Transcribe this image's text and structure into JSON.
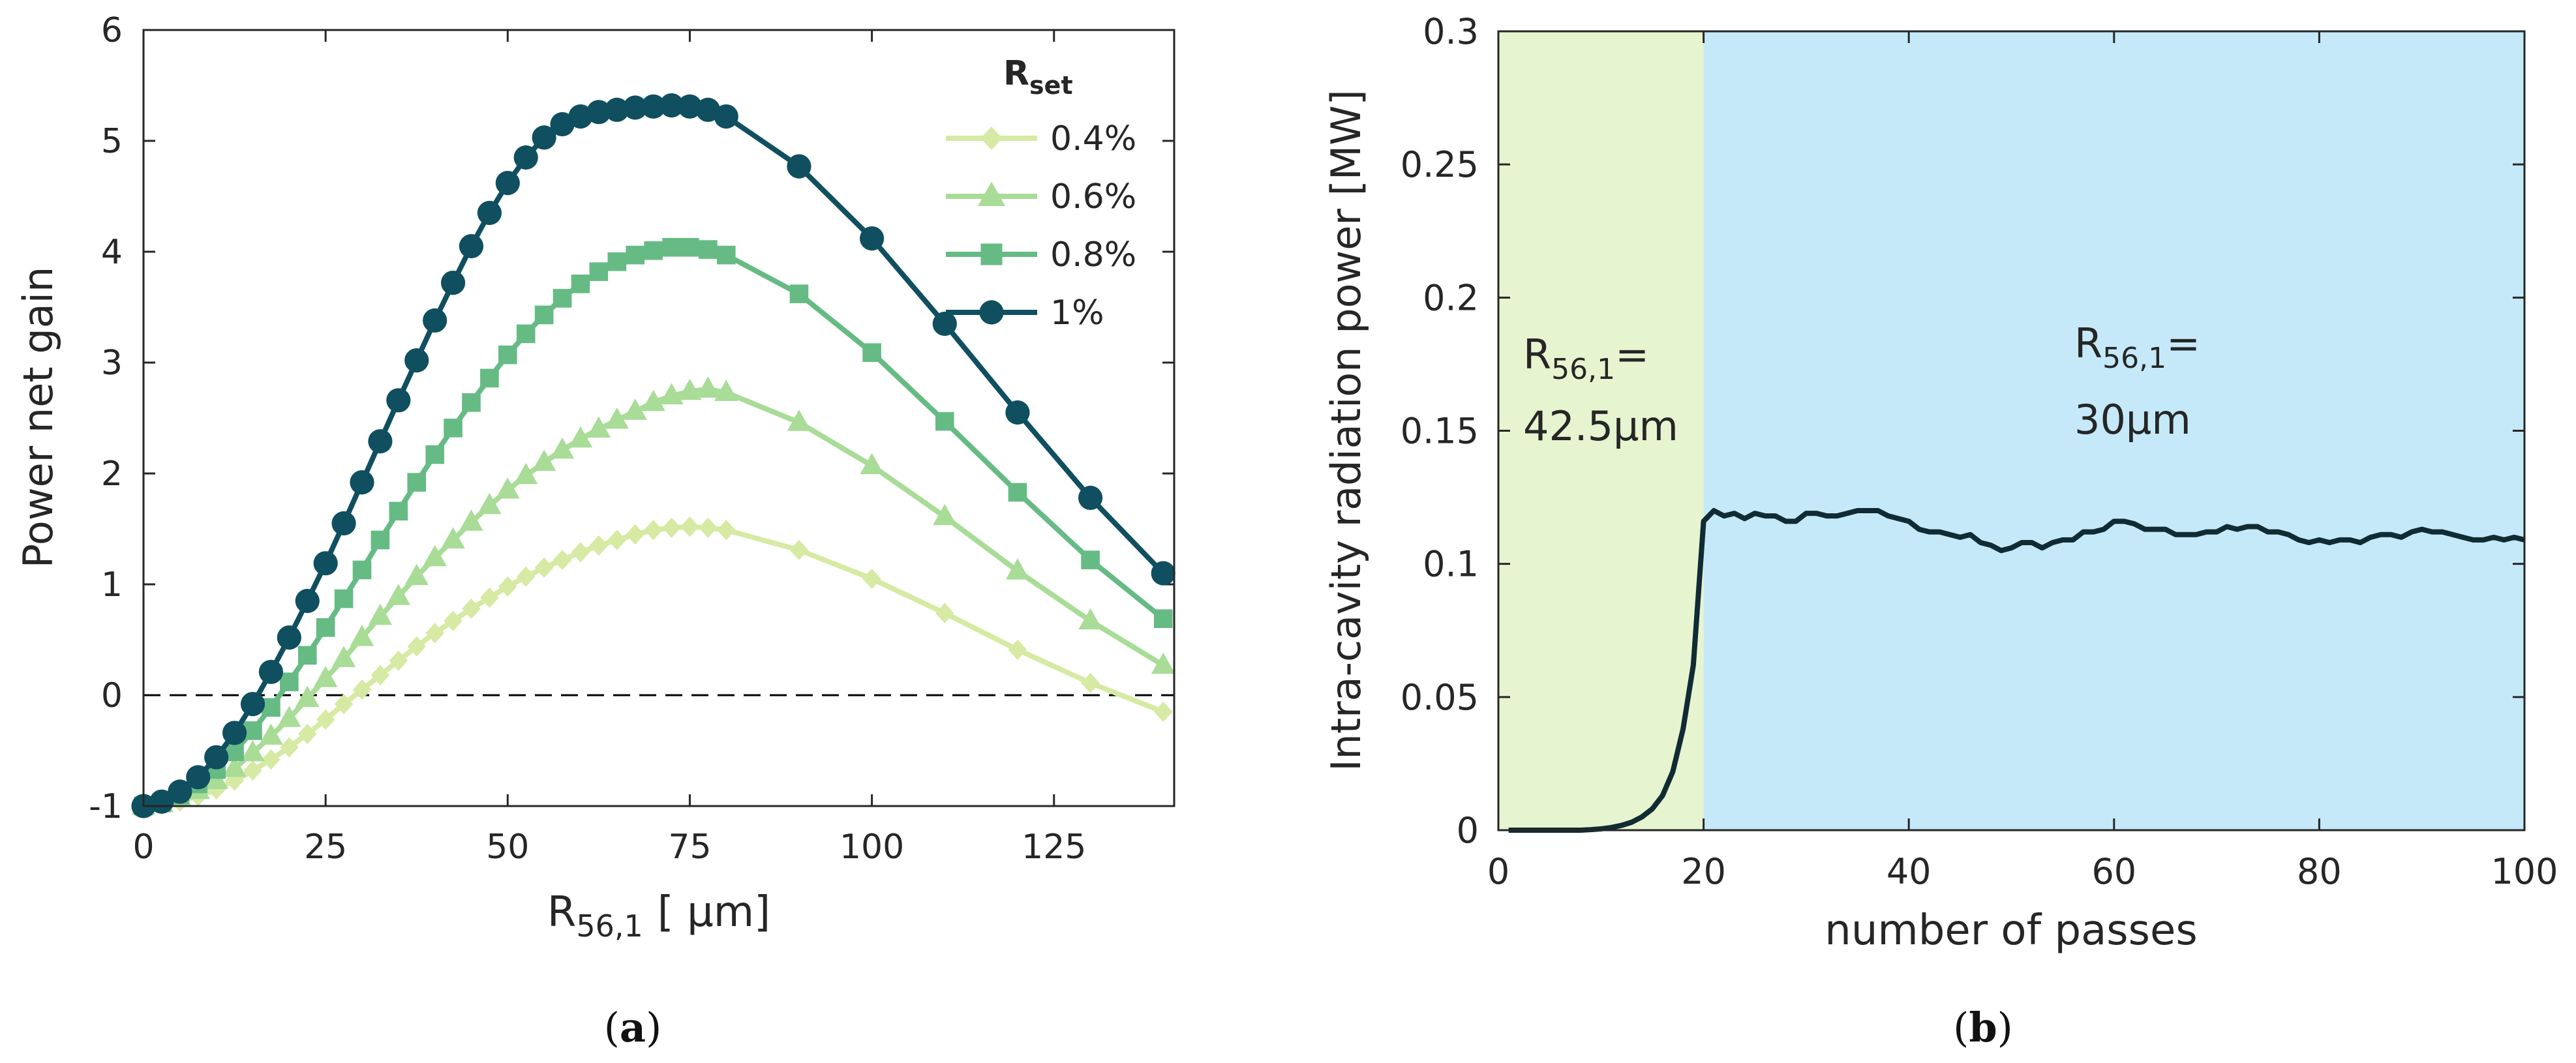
{
  "chart_data": [
    {
      "panel": "a",
      "type": "line",
      "caption": {
        "open": "(",
        "letter": "a",
        "close": ")"
      },
      "ylabel": "Power net gain",
      "xlabel": {
        "main": "R",
        "sub": "56,1",
        "unit": "[ μm]"
      },
      "xlim": [
        0,
        140
      ],
      "ylim": [
        -1,
        6
      ],
      "xticks": [
        0,
        25,
        50,
        75,
        100,
        125
      ],
      "yticks": [
        -1,
        0,
        1,
        2,
        3,
        4,
        5,
        6
      ],
      "reference_line": {
        "y": 0,
        "style": "dashed"
      },
      "legend": {
        "title_main": "R",
        "title_sub": "set",
        "position": "top-right"
      },
      "series": [
        {
          "name": "0.4%",
          "color": "#d6eaa3",
          "marker": "diamond",
          "x": [
            0,
            2.5,
            5,
            7.5,
            10,
            12.5,
            15,
            17.5,
            20,
            22.5,
            25,
            27.5,
            30,
            32.5,
            35,
            37.5,
            40,
            42.5,
            45,
            47.5,
            50,
            52.5,
            55,
            57.5,
            60,
            62.5,
            65,
            67.5,
            70,
            72.5,
            75,
            77.5,
            80,
            90,
            100,
            110,
            120,
            130,
            140
          ],
          "y": [
            -1.0,
            -0.99,
            -0.96,
            -0.91,
            -0.85,
            -0.77,
            -0.68,
            -0.58,
            -0.47,
            -0.35,
            -0.22,
            -0.08,
            0.05,
            0.18,
            0.31,
            0.44,
            0.56,
            0.67,
            0.78,
            0.88,
            0.98,
            1.07,
            1.15,
            1.22,
            1.29,
            1.35,
            1.4,
            1.45,
            1.49,
            1.51,
            1.52,
            1.51,
            1.49,
            1.31,
            1.05,
            0.74,
            0.41,
            0.11,
            -0.15
          ]
        },
        {
          "name": "0.6%",
          "color": "#a8dc97",
          "marker": "triangle",
          "x": [
            0,
            2.5,
            5,
            7.5,
            10,
            12.5,
            15,
            17.5,
            20,
            22.5,
            25,
            27.5,
            30,
            32.5,
            35,
            37.5,
            40,
            42.5,
            45,
            47.5,
            50,
            52.5,
            55,
            57.5,
            60,
            62.5,
            65,
            67.5,
            70,
            72.5,
            75,
            77.5,
            80,
            90,
            100,
            110,
            120,
            130,
            140
          ],
          "y": [
            -1.0,
            -0.98,
            -0.93,
            -0.86,
            -0.77,
            -0.66,
            -0.52,
            -0.37,
            -0.21,
            -0.03,
            0.15,
            0.33,
            0.52,
            0.71,
            0.89,
            1.07,
            1.24,
            1.4,
            1.56,
            1.71,
            1.85,
            1.98,
            2.1,
            2.21,
            2.31,
            2.4,
            2.48,
            2.56,
            2.64,
            2.7,
            2.74,
            2.76,
            2.73,
            2.46,
            2.07,
            1.61,
            1.12,
            0.67,
            0.27
          ]
        },
        {
          "name": "0.8%",
          "color": "#66bb84",
          "marker": "square",
          "x": [
            0,
            2.5,
            5,
            7.5,
            10,
            12.5,
            15,
            17.5,
            20,
            22.5,
            25,
            27.5,
            30,
            32.5,
            35,
            37.5,
            40,
            42.5,
            45,
            47.5,
            50,
            52.5,
            55,
            57.5,
            60,
            62.5,
            65,
            67.5,
            70,
            72.5,
            75,
            77.5,
            80,
            90,
            100,
            110,
            120,
            130,
            140
          ],
          "y": [
            -1.0,
            -0.97,
            -0.9,
            -0.8,
            -0.67,
            -0.51,
            -0.32,
            -0.11,
            0.12,
            0.36,
            0.61,
            0.87,
            1.13,
            1.4,
            1.66,
            1.92,
            2.17,
            2.41,
            2.64,
            2.86,
            3.07,
            3.26,
            3.43,
            3.58,
            3.71,
            3.82,
            3.91,
            3.97,
            4.01,
            4.04,
            4.04,
            4.02,
            3.97,
            3.62,
            3.09,
            2.47,
            1.83,
            1.22,
            0.69
          ]
        },
        {
          "name": "1%",
          "color": "#0f4f5f",
          "marker": "circle",
          "x": [
            0,
            2.5,
            5,
            7.5,
            10,
            12.5,
            15,
            17.5,
            20,
            22.5,
            25,
            27.5,
            30,
            32.5,
            35,
            37.5,
            40,
            42.5,
            45,
            47.5,
            50,
            52.5,
            55,
            57.5,
            60,
            62.5,
            65,
            67.5,
            70,
            72.5,
            75,
            77.5,
            80,
            90,
            100,
            110,
            120,
            130,
            140
          ],
          "y": [
            -1.0,
            -0.96,
            -0.87,
            -0.74,
            -0.56,
            -0.34,
            -0.08,
            0.21,
            0.52,
            0.85,
            1.19,
            1.55,
            1.92,
            2.29,
            2.66,
            3.02,
            3.38,
            3.72,
            4.05,
            4.35,
            4.62,
            4.85,
            5.03,
            5.15,
            5.22,
            5.26,
            5.28,
            5.3,
            5.31,
            5.32,
            5.31,
            5.28,
            5.22,
            4.77,
            4.12,
            3.35,
            2.55,
            1.78,
            1.1
          ]
        }
      ]
    },
    {
      "panel": "b",
      "type": "line",
      "caption": {
        "open": "(",
        "letter": "b",
        "close": ")"
      },
      "ylabel": "Intra-cavity radiation power [MW]",
      "xlabel": "number of passes",
      "xlim": [
        0,
        100
      ],
      "ylim": [
        0,
        0.3
      ],
      "xticks": [
        0,
        20,
        40,
        60,
        80,
        100
      ],
      "yticks": [
        "0",
        "0.05",
        "0.1",
        "0.15",
        "0.2",
        "0.25",
        "0.3"
      ],
      "regions": [
        {
          "from": 0,
          "to": 20,
          "color": "#e6f4cf",
          "label_main": "R",
          "label_sub": "56,1",
          "label_eq": "=",
          "label_value": "42.5μm"
        },
        {
          "from": 20,
          "to": 100,
          "color": "#c5e9f8",
          "label_main": "R",
          "label_sub": "56,1",
          "label_eq": "=",
          "label_value": "30μm"
        }
      ],
      "series": [
        {
          "name": "power",
          "color": "#102b33",
          "x": [
            1,
            2,
            3,
            4,
            5,
            6,
            7,
            8,
            9,
            10,
            11,
            12,
            13,
            14,
            15,
            16,
            17,
            18,
            19,
            20,
            21,
            22,
            23,
            24,
            25,
            26,
            27,
            28,
            29,
            30,
            31,
            32,
            33,
            34,
            35,
            36,
            37,
            38,
            39,
            40,
            41,
            42,
            43,
            44,
            45,
            46,
            47,
            48,
            49,
            50,
            51,
            52,
            53,
            54,
            55,
            56,
            57,
            58,
            59,
            60,
            61,
            62,
            63,
            64,
            65,
            66,
            67,
            68,
            69,
            70,
            71,
            72,
            73,
            74,
            75,
            76,
            77,
            78,
            79,
            80,
            81,
            82,
            83,
            84,
            85,
            86,
            87,
            88,
            89,
            90,
            91,
            92,
            93,
            94,
            95,
            96,
            97,
            98,
            99,
            100
          ],
          "y": [
            0.0,
            0.0,
            0.0,
            0.0,
            0.0,
            0.0,
            0.0,
            0.0,
            0.0002,
            0.0005,
            0.001,
            0.0018,
            0.003,
            0.005,
            0.008,
            0.013,
            0.022,
            0.038,
            0.062,
            0.116,
            0.12,
            0.118,
            0.119,
            0.117,
            0.119,
            0.118,
            0.118,
            0.116,
            0.116,
            0.119,
            0.119,
            0.118,
            0.118,
            0.119,
            0.12,
            0.12,
            0.12,
            0.118,
            0.117,
            0.116,
            0.113,
            0.112,
            0.112,
            0.111,
            0.11,
            0.111,
            0.108,
            0.107,
            0.105,
            0.106,
            0.108,
            0.108,
            0.106,
            0.108,
            0.109,
            0.109,
            0.112,
            0.112,
            0.113,
            0.116,
            0.116,
            0.115,
            0.113,
            0.113,
            0.113,
            0.111,
            0.111,
            0.111,
            0.112,
            0.112,
            0.114,
            0.113,
            0.114,
            0.114,
            0.112,
            0.112,
            0.111,
            0.109,
            0.108,
            0.109,
            0.108,
            0.109,
            0.109,
            0.108,
            0.11,
            0.111,
            0.111,
            0.11,
            0.112,
            0.113,
            0.112,
            0.112,
            0.111,
            0.11,
            0.109,
            0.109,
            0.11,
            0.109,
            0.11,
            0.109
          ]
        }
      ]
    }
  ]
}
